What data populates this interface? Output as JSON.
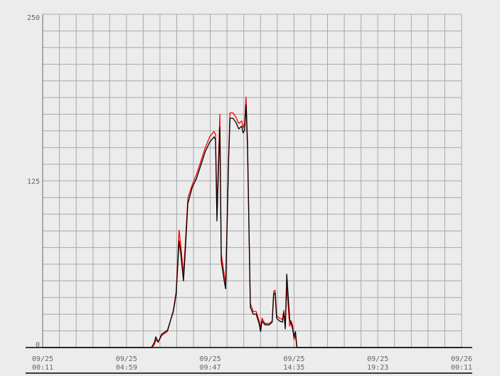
{
  "chart_data": {
    "type": "line",
    "title": "",
    "xlabel": "",
    "ylabel": "",
    "ylim": [
      0,
      250
    ],
    "grid": true,
    "legend": "none",
    "y_ticks": [
      "0",
      "125",
      "250"
    ],
    "x_ticks": [
      {
        "date": "09/25",
        "time": "00:11"
      },
      {
        "date": "09/25",
        "time": "04:59"
      },
      {
        "date": "09/25",
        "time": "09:47"
      },
      {
        "date": "09/25",
        "time": "14:35"
      },
      {
        "date": "09/25",
        "time": "19:23"
      },
      {
        "date": "09/26",
        "time": "00:11"
      }
    ],
    "x_start": "09/25 00:11",
    "x_end": "09/26 00:11",
    "colors": {
      "background": "#ececec",
      "grid": "#a8a8a8",
      "series_red": "#ff0000",
      "series_black": "#000000"
    },
    "series": [
      {
        "color": "#ff0000",
        "points": [
          [
            "00:11",
            0
          ],
          [
            "06:25",
            0
          ],
          [
            "06:35",
            2
          ],
          [
            "06:40",
            6
          ],
          [
            "06:48",
            4
          ],
          [
            "07:00",
            9
          ],
          [
            "07:20",
            12
          ],
          [
            "07:40",
            28
          ],
          [
            "07:50",
            42
          ],
          [
            "08:00",
            88
          ],
          [
            "08:05",
            78
          ],
          [
            "08:15",
            55
          ],
          [
            "08:22",
            80
          ],
          [
            "08:30",
            112
          ],
          [
            "08:45",
            122
          ],
          [
            "09:00",
            130
          ],
          [
            "09:15",
            140
          ],
          [
            "09:30",
            150
          ],
          [
            "09:45",
            158
          ],
          [
            "10:00",
            162
          ],
          [
            "10:05",
            160
          ],
          [
            "10:10",
            105
          ],
          [
            "10:15",
            140
          ],
          [
            "10:20",
            175
          ],
          [
            "10:25",
            70
          ],
          [
            "10:35",
            55
          ],
          [
            "10:40",
            48
          ],
          [
            "10:50",
            145
          ],
          [
            "10:55",
            176
          ],
          [
            "11:05",
            176
          ],
          [
            "11:15",
            173
          ],
          [
            "11:25",
            168
          ],
          [
            "11:35",
            170
          ],
          [
            "11:40",
            165
          ],
          [
            "11:45",
            168
          ],
          [
            "11:50",
            188
          ],
          [
            "11:55",
            155
          ],
          [
            "12:05",
            33
          ],
          [
            "12:15",
            27
          ],
          [
            "12:25",
            27
          ],
          [
            "12:35",
            20
          ],
          [
            "12:40",
            15
          ],
          [
            "12:45",
            22
          ],
          [
            "12:55",
            18
          ],
          [
            "13:10",
            18
          ],
          [
            "13:20",
            20
          ],
          [
            "13:25",
            42
          ],
          [
            "13:30",
            43
          ],
          [
            "13:35",
            24
          ],
          [
            "13:45",
            22
          ],
          [
            "13:55",
            21
          ],
          [
            "14:00",
            28
          ],
          [
            "14:05",
            17
          ],
          [
            "14:10",
            45
          ],
          [
            "14:20",
            16
          ],
          [
            "14:25",
            20
          ],
          [
            "14:30",
            17
          ],
          [
            "14:35",
            6
          ],
          [
            "14:40",
            9
          ],
          [
            "14:45",
            0
          ],
          [
            "24:11",
            0
          ]
        ]
      },
      {
        "color": "#000000",
        "points": [
          [
            "00:11",
            0
          ],
          [
            "06:25",
            0
          ],
          [
            "06:35",
            4
          ],
          [
            "06:40",
            8
          ],
          [
            "06:48",
            4
          ],
          [
            "07:00",
            10
          ],
          [
            "07:20",
            13
          ],
          [
            "07:40",
            27
          ],
          [
            "07:50",
            40
          ],
          [
            "08:00",
            80
          ],
          [
            "08:05",
            72
          ],
          [
            "08:15",
            50
          ],
          [
            "08:22",
            75
          ],
          [
            "08:30",
            108
          ],
          [
            "08:45",
            120
          ],
          [
            "09:00",
            127
          ],
          [
            "09:15",
            137
          ],
          [
            "09:30",
            147
          ],
          [
            "09:45",
            154
          ],
          [
            "10:00",
            158
          ],
          [
            "10:05",
            156
          ],
          [
            "10:10",
            95
          ],
          [
            "10:15",
            132
          ],
          [
            "10:20",
            165
          ],
          [
            "10:25",
            65
          ],
          [
            "10:35",
            50
          ],
          [
            "10:40",
            44
          ],
          [
            "10:50",
            140
          ],
          [
            "10:55",
            172
          ],
          [
            "11:05",
            172
          ],
          [
            "11:15",
            169
          ],
          [
            "11:25",
            164
          ],
          [
            "11:35",
            166
          ],
          [
            "11:40",
            161
          ],
          [
            "11:45",
            163
          ],
          [
            "11:50",
            182
          ],
          [
            "11:55",
            150
          ],
          [
            "12:05",
            30
          ],
          [
            "12:15",
            25
          ],
          [
            "12:25",
            25
          ],
          [
            "12:35",
            18
          ],
          [
            "12:40",
            12
          ],
          [
            "12:45",
            20
          ],
          [
            "12:55",
            17
          ],
          [
            "13:10",
            17
          ],
          [
            "13:20",
            19
          ],
          [
            "13:25",
            40
          ],
          [
            "13:30",
            41
          ],
          [
            "13:35",
            22
          ],
          [
            "13:45",
            20
          ],
          [
            "13:55",
            19
          ],
          [
            "14:00",
            26
          ],
          [
            "14:05",
            14
          ],
          [
            "14:10",
            55
          ],
          [
            "14:20",
            21
          ],
          [
            "14:25",
            18
          ],
          [
            "14:30",
            14
          ],
          [
            "14:35",
            8
          ],
          [
            "14:40",
            12
          ],
          [
            "14:45",
            0
          ],
          [
            "24:11",
            0
          ]
        ]
      }
    ]
  }
}
